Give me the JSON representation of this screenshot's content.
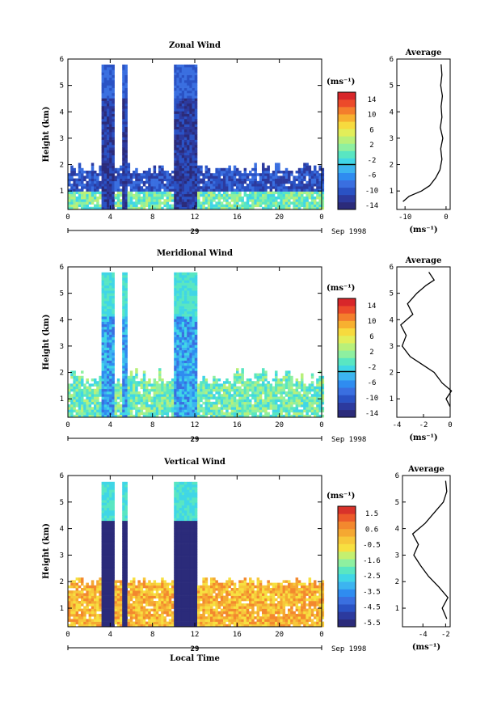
{
  "chart_data": [
    {
      "type": "heatmap",
      "title": "Zonal Wind",
      "xlabel": "",
      "ylabel": "Height (km)",
      "xlim": [
        0,
        24
      ],
      "ylim": [
        0.3,
        6
      ],
      "xticks": [
        "0",
        "4",
        "8",
        "12",
        "16",
        "20",
        "0"
      ],
      "yticks": [
        "1",
        "2",
        "3",
        "4",
        "5",
        "6"
      ],
      "date_axis_label": "29",
      "date_axis_suffix": "Sep 1998",
      "colorbar": {
        "unit": "(ms⁻¹)",
        "vmin": -16,
        "vmax": 16,
        "ticks": [
          "14",
          "10",
          "6",
          "2",
          "-2",
          "-6",
          "-10",
          "-14"
        ]
      },
      "profile": {
        "title": "Average",
        "xlabel": "(ms⁻¹)",
        "xticks": [
          "-10",
          "0"
        ],
        "xlim": [
          -12,
          1
        ],
        "points": [
          [
            -10.5,
            0.6
          ],
          [
            -9,
            0.8
          ],
          [
            -6,
            1.0
          ],
          [
            -4,
            1.2
          ],
          [
            -2.5,
            1.5
          ],
          [
            -1.5,
            1.8
          ],
          [
            -1,
            2.2
          ],
          [
            -1.3,
            2.6
          ],
          [
            -0.8,
            3.0
          ],
          [
            -1.4,
            3.4
          ],
          [
            -1,
            3.8
          ],
          [
            -1.2,
            4.2
          ],
          [
            -0.9,
            4.6
          ],
          [
            -1.3,
            5.0
          ],
          [
            -1,
            5.4
          ],
          [
            -1.2,
            5.8
          ]
        ]
      }
    },
    {
      "type": "heatmap",
      "title": "Meridional Wind",
      "xlabel": "",
      "ylabel": "Height (km)",
      "xlim": [
        0,
        24
      ],
      "ylim": [
        0.3,
        6
      ],
      "xticks": [
        "0",
        "4",
        "8",
        "12",
        "16",
        "20",
        "0"
      ],
      "yticks": [
        "1",
        "2",
        "3",
        "4",
        "5",
        "6"
      ],
      "date_axis_label": "29",
      "date_axis_suffix": "Sep 1998",
      "colorbar": {
        "unit": "(ms⁻¹)",
        "vmin": -16,
        "vmax": 16,
        "ticks": [
          "14",
          "10",
          "6",
          "2",
          "-2",
          "-6",
          "-10",
          "-14"
        ]
      },
      "profile": {
        "title": "Average",
        "xlabel": "(ms⁻¹)",
        "xticks": [
          "-4",
          "-2",
          "0"
        ],
        "xlim": [
          -4,
          0
        ],
        "points": [
          [
            0,
            0.7
          ],
          [
            -0.3,
            1.0
          ],
          [
            0.1,
            1.3
          ],
          [
            -0.6,
            1.6
          ],
          [
            -1.2,
            2.0
          ],
          [
            -2.1,
            2.3
          ],
          [
            -3,
            2.6
          ],
          [
            -3.6,
            3.0
          ],
          [
            -3.3,
            3.4
          ],
          [
            -3.7,
            3.8
          ],
          [
            -2.8,
            4.2
          ],
          [
            -3.2,
            4.6
          ],
          [
            -2.5,
            5.0
          ],
          [
            -1.8,
            5.3
          ],
          [
            -1.2,
            5.5
          ],
          [
            -1.6,
            5.8
          ]
        ]
      }
    },
    {
      "type": "heatmap",
      "title": "Vertical Wind",
      "xlabel": "Local Time",
      "ylabel": "Height (km)",
      "xlim": [
        0,
        24
      ],
      "ylim": [
        0.3,
        6
      ],
      "xticks": [
        "0",
        "4",
        "8",
        "12",
        "16",
        "20",
        "0"
      ],
      "yticks": [
        "1",
        "2",
        "3",
        "4",
        "5",
        "6"
      ],
      "date_axis_label": "29",
      "date_axis_suffix": "Sep 1998",
      "colorbar": {
        "unit": "(ms⁻¹)",
        "vmin": -6,
        "vmax": 2,
        "ticks": [
          "1.5",
          "0.6",
          "-0.5",
          "-1.6",
          "-2.5",
          "-3.5",
          "-4.5",
          "-5.5"
        ]
      },
      "profile": {
        "title": "Average",
        "xlabel": "(ms⁻¹)",
        "xticks": [
          "-4",
          "-2"
        ],
        "xlim": [
          -5.8,
          -1.6
        ],
        "points": [
          [
            -1.9,
            0.6
          ],
          [
            -2.3,
            1.0
          ],
          [
            -1.8,
            1.4
          ],
          [
            -2.6,
            1.8
          ],
          [
            -3.5,
            2.2
          ],
          [
            -4.2,
            2.6
          ],
          [
            -4.8,
            3.0
          ],
          [
            -4.4,
            3.4
          ],
          [
            -4.9,
            3.8
          ],
          [
            -3.8,
            4.2
          ],
          [
            -3.0,
            4.6
          ],
          [
            -2.2,
            5.0
          ],
          [
            -1.9,
            5.4
          ],
          [
            -2.0,
            5.8
          ]
        ]
      }
    }
  ]
}
